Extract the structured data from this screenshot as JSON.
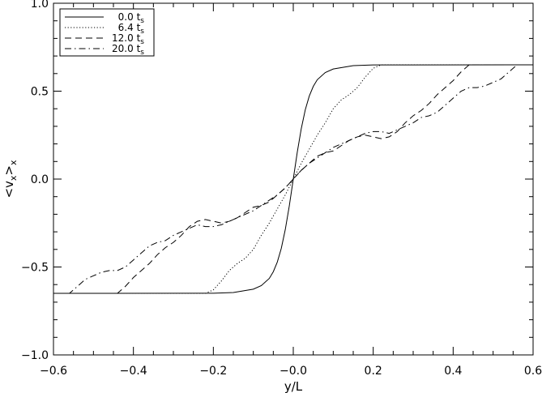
{
  "chart_data": {
    "type": "line",
    "xlabel": "y/L",
    "ylabel": "<v_x>_x",
    "xlim": [
      -0.6,
      0.6
    ],
    "ylim": [
      -1.0,
      1.0
    ],
    "xticks": [
      -0.6,
      -0.4,
      -0.2,
      0.0,
      0.2,
      0.4,
      0.6
    ],
    "xtick_labels": [
      "−0.6",
      "−0.4",
      "−0.2",
      "−0.0",
      "0.2",
      "0.4",
      "0.6"
    ],
    "yticks": [
      -1.0,
      -0.5,
      0.0,
      0.5,
      1.0
    ],
    "ytick_labels": [
      "−1.0",
      "−0.5",
      "0.0",
      "0.5",
      "1.0"
    ],
    "grid": false,
    "legend": "top-left",
    "series": [
      {
        "name": "0.0 t_s",
        "label_value": "0.0",
        "label_unit": "t",
        "label_sub": "s",
        "dash": "solid",
        "x": [
          -0.6,
          -0.2,
          -0.15,
          -0.1,
          -0.08,
          -0.06,
          -0.05,
          -0.04,
          -0.03,
          -0.02,
          -0.01,
          0.0,
          0.01,
          0.02,
          0.03,
          0.04,
          0.05,
          0.06,
          0.08,
          0.1,
          0.15,
          0.2,
          0.6
        ],
        "y": [
          -0.65,
          -0.649,
          -0.645,
          -0.626,
          -0.606,
          -0.565,
          -0.527,
          -0.472,
          -0.394,
          -0.287,
          -0.153,
          0.0,
          0.153,
          0.287,
          0.394,
          0.472,
          0.527,
          0.565,
          0.606,
          0.626,
          0.645,
          0.649,
          0.65
        ]
      },
      {
        "name": "6.4 t_s",
        "label_value": "6.4",
        "label_unit": "t",
        "label_sub": "s",
        "dash": "dotted",
        "x": [
          -0.6,
          -0.22,
          -0.2,
          -0.18,
          -0.16,
          -0.14,
          -0.12,
          -0.1,
          -0.08,
          -0.06,
          -0.04,
          -0.02,
          0.0,
          0.02,
          0.04,
          0.06,
          0.08,
          0.1,
          0.12,
          0.14,
          0.16,
          0.18,
          0.2,
          0.22,
          0.6
        ],
        "y": [
          -0.65,
          -0.65,
          -0.63,
          -0.58,
          -0.52,
          -0.48,
          -0.45,
          -0.4,
          -0.32,
          -0.25,
          -0.17,
          -0.09,
          0.0,
          0.09,
          0.17,
          0.25,
          0.32,
          0.4,
          0.45,
          0.48,
          0.52,
          0.58,
          0.63,
          0.65,
          0.65
        ]
      },
      {
        "name": "12.0 t_s",
        "label_value": "12.0",
        "label_unit": "t",
        "label_sub": "s",
        "dash": "dashed",
        "x": [
          -0.6,
          -0.44,
          -0.42,
          -0.4,
          -0.38,
          -0.36,
          -0.34,
          -0.32,
          -0.3,
          -0.28,
          -0.26,
          -0.24,
          -0.22,
          -0.2,
          -0.18,
          -0.16,
          -0.14,
          -0.12,
          -0.1,
          -0.08,
          -0.06,
          -0.04,
          -0.02,
          0.0,
          0.02,
          0.04,
          0.06,
          0.08,
          0.1,
          0.12,
          0.14,
          0.16,
          0.18,
          0.2,
          0.22,
          0.24,
          0.26,
          0.28,
          0.3,
          0.32,
          0.34,
          0.36,
          0.38,
          0.4,
          0.42,
          0.44,
          0.6
        ],
        "y": [
          -0.65,
          -0.65,
          -0.61,
          -0.56,
          -0.52,
          -0.48,
          -0.43,
          -0.39,
          -0.36,
          -0.32,
          -0.27,
          -0.24,
          -0.23,
          -0.24,
          -0.25,
          -0.24,
          -0.22,
          -0.19,
          -0.16,
          -0.15,
          -0.13,
          -0.09,
          -0.05,
          0.0,
          0.05,
          0.09,
          0.13,
          0.15,
          0.16,
          0.19,
          0.22,
          0.24,
          0.25,
          0.24,
          0.23,
          0.24,
          0.27,
          0.32,
          0.36,
          0.39,
          0.43,
          0.48,
          0.52,
          0.56,
          0.61,
          0.65,
          0.65
        ]
      },
      {
        "name": "20.0 t_s",
        "label_value": "20.0",
        "label_unit": "t",
        "label_sub": "s",
        "dash": "dashdot",
        "x": [
          -0.6,
          -0.56,
          -0.54,
          -0.52,
          -0.5,
          -0.48,
          -0.46,
          -0.44,
          -0.42,
          -0.4,
          -0.38,
          -0.36,
          -0.34,
          -0.32,
          -0.3,
          -0.28,
          -0.26,
          -0.24,
          -0.22,
          -0.2,
          -0.18,
          -0.16,
          -0.14,
          -0.12,
          -0.1,
          -0.08,
          -0.06,
          -0.04,
          -0.02,
          0.0,
          0.02,
          0.04,
          0.06,
          0.08,
          0.1,
          0.12,
          0.14,
          0.16,
          0.18,
          0.2,
          0.22,
          0.24,
          0.26,
          0.28,
          0.3,
          0.32,
          0.34,
          0.36,
          0.38,
          0.4,
          0.42,
          0.44,
          0.46,
          0.48,
          0.5,
          0.52,
          0.54,
          0.56,
          0.6
        ],
        "y": [
          -0.65,
          -0.65,
          -0.61,
          -0.57,
          -0.55,
          -0.53,
          -0.52,
          -0.52,
          -0.5,
          -0.46,
          -0.42,
          -0.38,
          -0.36,
          -0.35,
          -0.32,
          -0.3,
          -0.28,
          -0.26,
          -0.27,
          -0.27,
          -0.26,
          -0.24,
          -0.22,
          -0.2,
          -0.18,
          -0.15,
          -0.12,
          -0.09,
          -0.05,
          0.0,
          0.05,
          0.09,
          0.12,
          0.15,
          0.18,
          0.2,
          0.22,
          0.24,
          0.26,
          0.27,
          0.27,
          0.26,
          0.28,
          0.3,
          0.32,
          0.35,
          0.36,
          0.38,
          0.42,
          0.46,
          0.5,
          0.52,
          0.52,
          0.53,
          0.55,
          0.57,
          0.61,
          0.65,
          0.65
        ]
      }
    ]
  }
}
